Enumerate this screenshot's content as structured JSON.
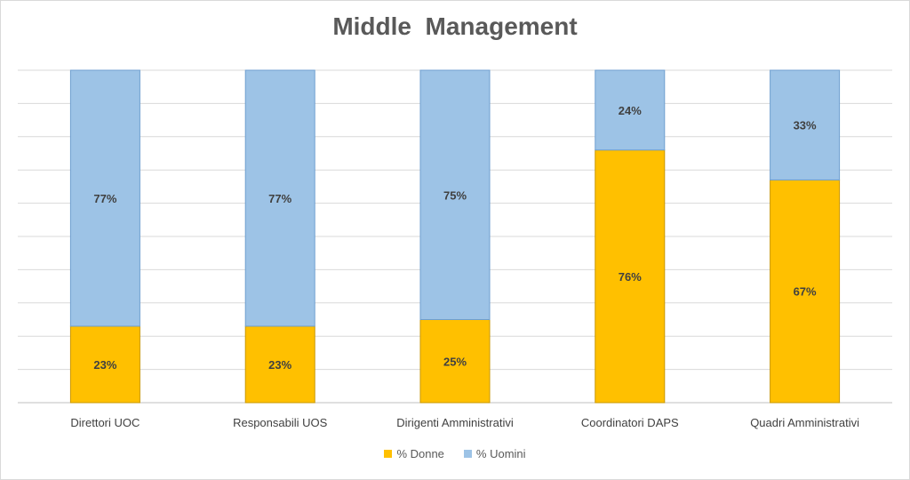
{
  "chart_data": {
    "type": "bar",
    "stacked": true,
    "title": "Middle  Management",
    "categories": [
      "Direttori UOC",
      "Responsabili UOS",
      "Dirigenti Amministrativi",
      "Coordinatori DAPS",
      "Quadri Amministrativi"
    ],
    "series": [
      {
        "name": "% Donne",
        "values": [
          23,
          23,
          25,
          76,
          67
        ],
        "labels": [
          "23%",
          "23%",
          "25%",
          "76%",
          "67%"
        ],
        "color": "#ffc000"
      },
      {
        "name": "% Uomini",
        "values": [
          77,
          77,
          75,
          24,
          33
        ],
        "labels": [
          "77%",
          "77%",
          "75%",
          "24%",
          "33%"
        ],
        "color": "#9dc3e6"
      }
    ],
    "ylim": [
      0,
      100
    ],
    "grid": true,
    "legend_position": "bottom"
  }
}
